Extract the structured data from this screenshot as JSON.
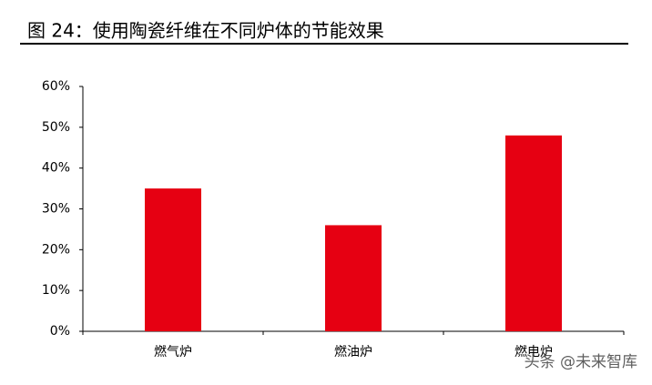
{
  "chart_data": {
    "type": "bar",
    "title": "图 24：使用陶瓷纤维在不同炉体的节能效果",
    "categories": [
      "燃气炉",
      "燃油炉",
      "燃电炉"
    ],
    "values": [
      35,
      26,
      48
    ],
    "color": "#e60012",
    "ylim": [
      0,
      60
    ],
    "yticks": [
      {
        "value": 0,
        "label": "0%"
      },
      {
        "value": 10,
        "label": "10%"
      },
      {
        "value": 20,
        "label": "20%"
      },
      {
        "value": 30,
        "label": "30%"
      },
      {
        "value": 40,
        "label": "40%"
      },
      {
        "value": 50,
        "label": "50%"
      },
      {
        "value": 60,
        "label": "60%"
      }
    ],
    "grid": false,
    "watermark": "头条 @未来智库"
  }
}
